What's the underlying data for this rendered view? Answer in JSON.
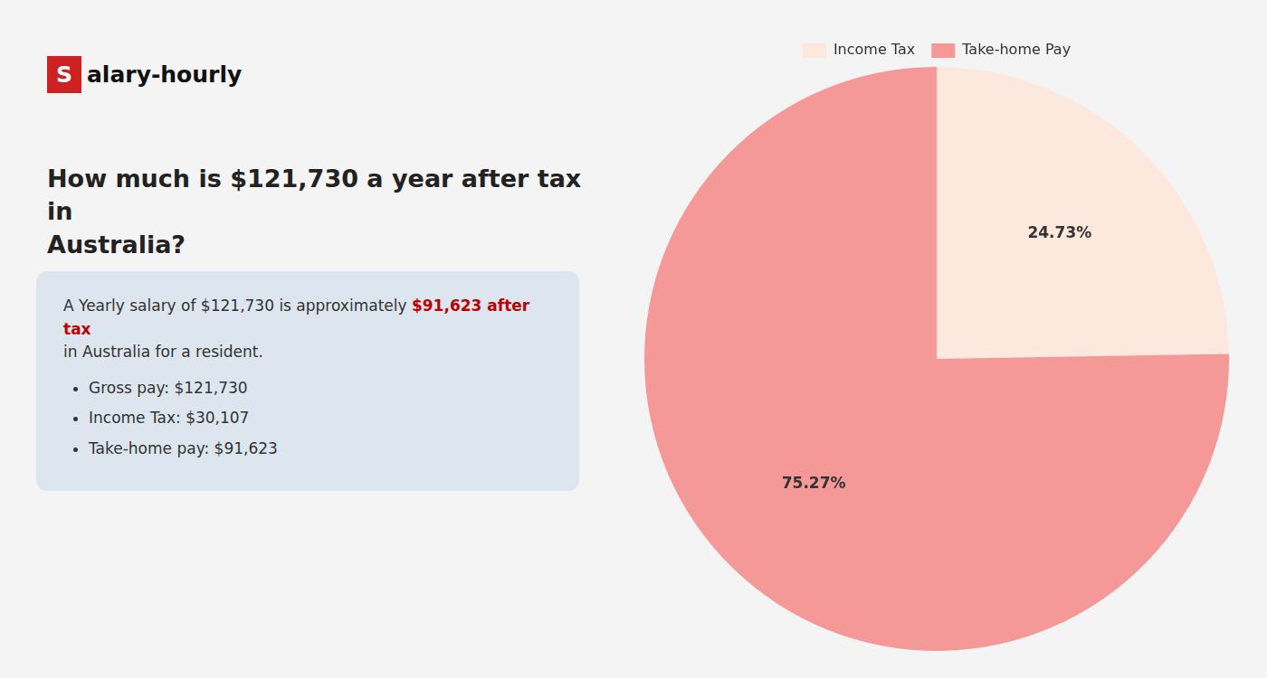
{
  "chart_data": {
    "type": "pie",
    "title": [
      "How much is $121,730 a year after tax in",
      "Australia?"
    ],
    "annotations": [
      "Salary-hourly",
      "A Yearly salary of $121,730 is approximately ",
      "$91,623 after tax",
      "in Australia for a resident.",
      "Gross pay: $121,730",
      "Income Tax: $30,107",
      "Take-home pay: $91,623"
    ],
    "categories": [
      "Income Tax",
      "Take-home Pay"
    ],
    "values": [
      24.73,
      75.27
    ],
    "value_labels": [
      "24.73%",
      "75.27%"
    ],
    "colors": [
      "#fde8de",
      "#f59898"
    ],
    "data_labels": true,
    "legend": "top"
  }
}
